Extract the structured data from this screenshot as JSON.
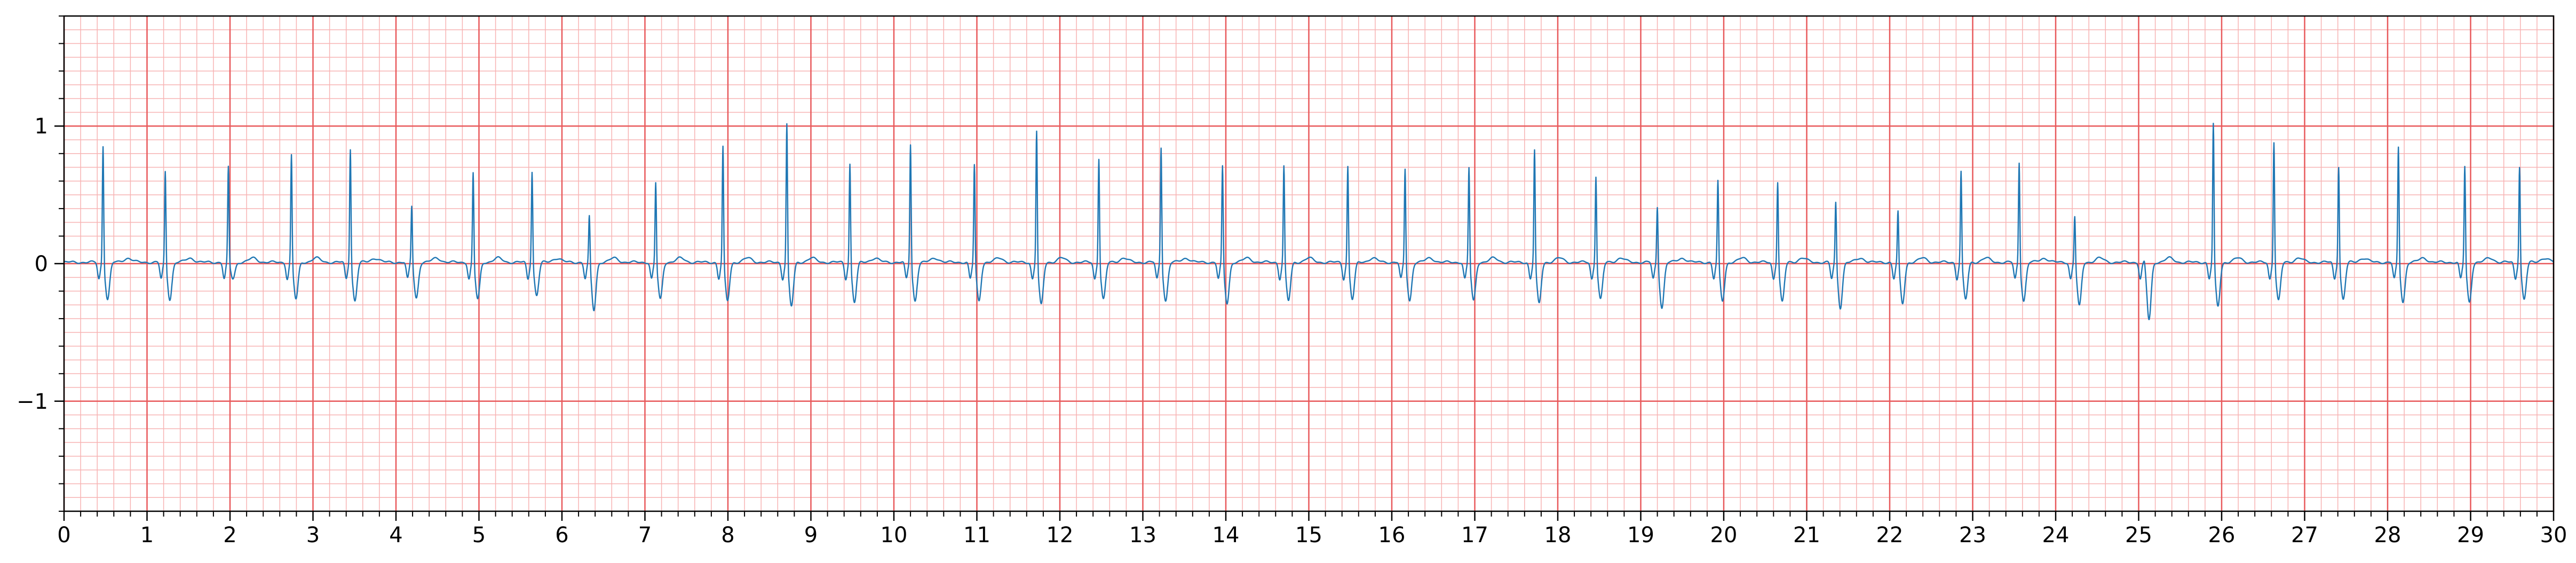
{
  "chart_data": {
    "type": "line",
    "title": "",
    "xlabel": "",
    "ylabel": "",
    "xlim": [
      0,
      30
    ],
    "ylim": [
      -1.8,
      1.8
    ],
    "x_ticks": [
      0,
      1,
      2,
      3,
      4,
      5,
      6,
      7,
      8,
      9,
      10,
      11,
      12,
      13,
      14,
      15,
      16,
      17,
      18,
      19,
      20,
      21,
      22,
      23,
      24,
      25,
      26,
      27,
      28,
      29,
      30
    ],
    "x_tick_labels": [
      "0",
      "1",
      "2",
      "3",
      "4",
      "5",
      "6",
      "7",
      "8",
      "9",
      "10",
      "11",
      "12",
      "13",
      "14",
      "15",
      "16",
      "17",
      "18",
      "19",
      "20",
      "21",
      "22",
      "23",
      "24",
      "25",
      "26",
      "27",
      "28",
      "29",
      "30"
    ],
    "y_ticks": [
      -1,
      0,
      1
    ],
    "y_tick_labels": [
      "−1",
      "0",
      "1"
    ],
    "grid": {
      "major_x_step": 1,
      "major_y_step": 1,
      "minor_x_step": 0.2,
      "minor_y_step": 0.1,
      "major_color": "#e8595b",
      "minor_color": "#f7b3b3",
      "background": "#ffffff"
    },
    "series": [
      {
        "color": "#1f77b4",
        "baseline": 0.01,
        "beats": [
          {
            "t": 0.47,
            "amp": 0.87,
            "s": -0.27
          },
          {
            "t": 1.22,
            "amp": 0.68,
            "s": -0.27
          },
          {
            "t": 1.98,
            "amp": 0.7,
            "s": -0.12
          },
          {
            "t": 2.74,
            "amp": 0.8,
            "s": -0.27
          },
          {
            "t": 3.45,
            "amp": 0.85,
            "s": -0.28
          },
          {
            "t": 4.19,
            "amp": 0.43,
            "s": -0.26
          },
          {
            "t": 4.93,
            "amp": 0.67,
            "s": -0.27
          },
          {
            "t": 5.64,
            "amp": 0.68,
            "s": -0.24
          },
          {
            "t": 6.33,
            "amp": 0.36,
            "s": -0.35
          },
          {
            "t": 7.13,
            "amp": 0.6,
            "s": -0.27
          },
          {
            "t": 7.94,
            "amp": 0.86,
            "s": -0.28
          },
          {
            "t": 8.71,
            "amp": 1.03,
            "s": -0.32
          },
          {
            "t": 9.47,
            "amp": 0.74,
            "s": -0.29
          },
          {
            "t": 10.2,
            "amp": 0.88,
            "s": -0.28
          },
          {
            "t": 10.97,
            "amp": 0.73,
            "s": -0.28
          },
          {
            "t": 11.72,
            "amp": 0.98,
            "s": -0.31
          },
          {
            "t": 12.47,
            "amp": 0.78,
            "s": -0.27
          },
          {
            "t": 13.22,
            "amp": 0.86,
            "s": -0.28
          },
          {
            "t": 13.96,
            "amp": 0.72,
            "s": -0.3
          },
          {
            "t": 14.7,
            "amp": 0.72,
            "s": -0.28
          },
          {
            "t": 15.47,
            "amp": 0.72,
            "s": -0.27
          },
          {
            "t": 16.16,
            "amp": 0.7,
            "s": -0.28
          },
          {
            "t": 16.93,
            "amp": 0.71,
            "s": -0.28
          },
          {
            "t": 17.72,
            "amp": 0.84,
            "s": -0.3
          },
          {
            "t": 18.46,
            "amp": 0.65,
            "s": -0.27
          },
          {
            "t": 19.2,
            "amp": 0.43,
            "s": -0.33
          },
          {
            "t": 19.93,
            "amp": 0.61,
            "s": -0.28
          },
          {
            "t": 20.65,
            "amp": 0.61,
            "s": -0.29
          },
          {
            "t": 21.35,
            "amp": 0.46,
            "s": -0.33
          },
          {
            "t": 22.1,
            "amp": 0.39,
            "s": -0.3
          },
          {
            "t": 22.86,
            "amp": 0.68,
            "s": -0.27
          },
          {
            "t": 23.56,
            "amp": 0.75,
            "s": -0.28
          },
          {
            "t": 24.23,
            "amp": 0.36,
            "s": -0.32
          },
          {
            "t": 25.07,
            "amp": 0.03,
            "s": -0.42
          },
          {
            "t": 25.9,
            "amp": 1.03,
            "s": -0.32
          },
          {
            "t": 26.63,
            "amp": 0.9,
            "s": -0.28
          },
          {
            "t": 27.41,
            "amp": 0.72,
            "s": -0.27
          },
          {
            "t": 28.13,
            "amp": 0.86,
            "s": -0.29
          },
          {
            "t": 28.93,
            "amp": 0.72,
            "s": -0.29
          },
          {
            "t": 29.59,
            "amp": 0.72,
            "s": -0.27
          }
        ]
      }
    ]
  }
}
